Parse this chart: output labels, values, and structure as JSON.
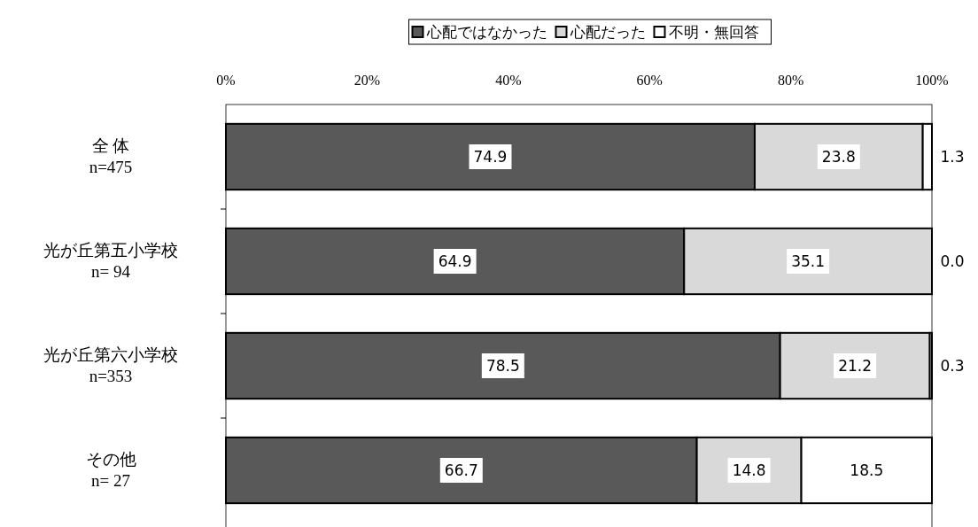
{
  "chart_data": {
    "type": "bar",
    "orientation": "horizontal",
    "stacked": true,
    "categories": [
      "全 体\nn=475",
      "光が丘第五小学校\nn= 94",
      "光が丘第六小学校\nn=353",
      "その他\nn= 27"
    ],
    "series": [
      {
        "name": "心配ではなかった",
        "color": "#595959",
        "values": [
          74.9,
          64.9,
          78.5,
          66.7
        ],
        "value_labels": [
          "74.9",
          "64.9",
          "78.5",
          "66.7"
        ]
      },
      {
        "name": "心配だった",
        "color": "#d9d9d9",
        "values": [
          23.8,
          35.1,
          21.2,
          14.8
        ],
        "value_labels": [
          "23.8",
          "35.1",
          "21.2",
          "14.8"
        ]
      },
      {
        "name": "不明・無回答",
        "color": "#ffffff",
        "values": [
          1.3,
          0.0,
          0.3,
          18.5
        ],
        "value_labels": [
          "1.3",
          "0.0",
          "0.3",
          "18.5"
        ]
      }
    ],
    "xlim": [
      0,
      100
    ],
    "xticks": [
      {
        "value": 0,
        "label": "0%"
      },
      {
        "value": 20,
        "label": "20%"
      },
      {
        "value": 40,
        "label": "40%"
      },
      {
        "value": 60,
        "label": "60%"
      },
      {
        "value": 80,
        "label": "80%"
      },
      {
        "value": 100,
        "label": "100%"
      }
    ],
    "legend": "top",
    "grid": false
  }
}
